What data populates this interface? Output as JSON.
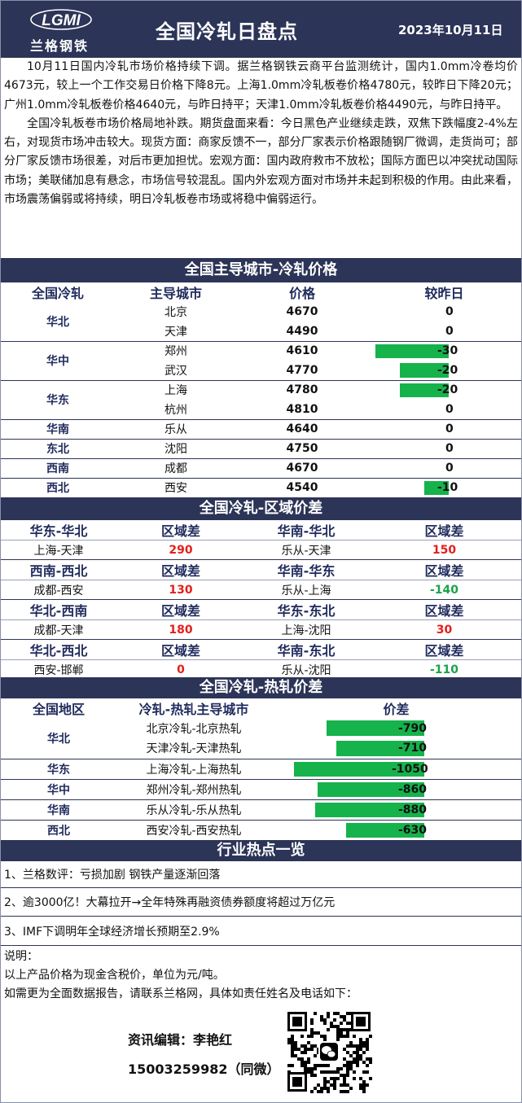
{
  "header": {
    "logo_text": "兰格钢铁",
    "logo_mark": "LGMI",
    "title": "全国冷轧日盘点",
    "date": "2023年10月11日"
  },
  "intro": {
    "p1": "10月11日国内冷轧市场价格持续下调。据兰格钢铁云商平台监测统计，国内1.0mm冷卷均价4673元，较上一个工作交易日价格下降8元。上海1.0mm冷轧板卷价格4780元，较昨日下降20元；广州1.0mm冷轧板卷价格4640元，与昨日持平；天津1.0mm冷轧板卷价格4490元，与昨日持平。",
    "p2": "全国冷轧板卷市场价格局地补跌。期货盘面来看：今日黑色产业继续走跌，双焦下跌幅度2-4%左右，对现货市场冲击较大。现货方面：商家反馈不一，部分厂家表示价格跟随钢厂微调，走货尚可；部分厂家反馈市场很差，对后市更加担忧。宏观方面：国内政府救市不放松；国际方面巴以冲突扰动国际市场；美联储加息有悬念，市场信号较混乱。国内外宏观方面对市场并未起到积极的作用。由此来看，市场震荡偏弱或将持续，明日冷轧板卷市场或将稳中偏弱运行。"
  },
  "price_section": {
    "title": "全国主导城市-冷轧价格",
    "headers": [
      "全国冷轧",
      "主导城市",
      "价格",
      "较昨日"
    ],
    "groups": [
      {
        "region": "华北",
        "rows": [
          {
            "city": "北京",
            "price": "4670",
            "change": "0",
            "change_num": 0
          },
          {
            "city": "天津",
            "price": "4490",
            "change": "0",
            "change_num": 0
          }
        ]
      },
      {
        "region": "华中",
        "rows": [
          {
            "city": "郑州",
            "price": "4610",
            "change": "-30",
            "change_num": -30
          },
          {
            "city": "武汉",
            "price": "4770",
            "change": "-20",
            "change_num": -20
          }
        ]
      },
      {
        "region": "华东",
        "rows": [
          {
            "city": "上海",
            "price": "4780",
            "change": "-20",
            "change_num": -20
          },
          {
            "city": "杭州",
            "price": "4810",
            "change": "0",
            "change_num": 0
          }
        ]
      },
      {
        "region": "华南",
        "rows": [
          {
            "city": "乐从",
            "price": "4640",
            "change": "0",
            "change_num": 0
          }
        ]
      },
      {
        "region": "东北",
        "rows": [
          {
            "city": "沈阳",
            "price": "4750",
            "change": "0",
            "change_num": 0
          }
        ]
      },
      {
        "region": "西南",
        "rows": [
          {
            "city": "成都",
            "price": "4670",
            "change": "0",
            "change_num": 0
          }
        ]
      },
      {
        "region": "西北",
        "rows": [
          {
            "city": "西安",
            "price": "4540",
            "change": "-10",
            "change_num": -10
          }
        ]
      }
    ]
  },
  "region_section": {
    "title": "全国冷轧-区域价差",
    "diff_label": "区域差",
    "blocks": [
      {
        "left": {
          "pair": "华东-华北",
          "route": "上海-天津",
          "value": "290",
          "sign": "pos"
        },
        "right": {
          "pair": "华南-华北",
          "route": "乐从-天津",
          "value": "150",
          "sign": "pos"
        }
      },
      {
        "left": {
          "pair": "西南-西北",
          "route": "成都-西安",
          "value": "130",
          "sign": "pos"
        },
        "right": {
          "pair": "华南-华东",
          "route": "乐从-上海",
          "value": "-140",
          "sign": "neg"
        }
      },
      {
        "left": {
          "pair": "华北-西南",
          "route": "成都-天津",
          "value": "180",
          "sign": "pos"
        },
        "right": {
          "pair": "华东-东北",
          "route": "上海-沈阳",
          "value": "30",
          "sign": "pos"
        }
      },
      {
        "left": {
          "pair": "华北-西北",
          "route": "西安-邯郸",
          "value": "0",
          "sign": "pos"
        },
        "right": {
          "pair": "华南-东北",
          "route": "乐从-沈阳",
          "value": "-110",
          "sign": "neg"
        }
      }
    ]
  },
  "hotcold_section": {
    "title": "全国冷轧-热轧价差",
    "headers": [
      "全国地区",
      "冷轧-热轧主导城市",
      "价差"
    ],
    "groups": [
      {
        "region": "华北",
        "rows": [
          {
            "pair": "北京冷轧-北京热轧",
            "value": "-790",
            "value_num": -790
          },
          {
            "pair": "天津冷轧-天津热轧",
            "value": "-710",
            "value_num": -710
          }
        ]
      },
      {
        "region": "华东",
        "rows": [
          {
            "pair": "上海冷轧-上海热轧",
            "value": "-1050",
            "value_num": -1050
          }
        ]
      },
      {
        "region": "华中",
        "rows": [
          {
            "pair": "郑州冷轧-郑州热轧",
            "value": "-860",
            "value_num": -860
          }
        ]
      },
      {
        "region": "华南",
        "rows": [
          {
            "pair": "乐从冷轧-乐从热轧",
            "value": "-880",
            "value_num": -880
          }
        ]
      },
      {
        "region": "西北",
        "rows": [
          {
            "pair": "西安冷轧-西安热轧",
            "value": "-630",
            "value_num": -630
          }
        ]
      }
    ]
  },
  "hot_topics": {
    "title": "行业热点一览",
    "items": [
      "1、兰格数评：亏损加剧 钢铁产量逐渐回落",
      "2、逾3000亿！大幕拉开→全年特殊再融资债券额度将超过万亿元",
      "3、IMF下调明年全球经济增长预期至2.9%"
    ]
  },
  "notes": {
    "label": "说明：",
    "line1": "以上产品价格为现金含税价，单位为元/吨。",
    "line2": "如需更为全面数据报告，请联系兰格网，具体如责任姓名及电话如下："
  },
  "contact": {
    "editor": "资讯编辑：李艳红",
    "phone": "15003259982（同微）"
  },
  "colors": {
    "navy": "#2c3457",
    "bar_green": "#16b24b",
    "positive_red": "#e3201b",
    "negative_green": "#1aa349"
  },
  "icons": {
    "logo": "lgmi-logo-icon",
    "qr": "qr-code-icon",
    "wechat": "wechat-icon"
  }
}
